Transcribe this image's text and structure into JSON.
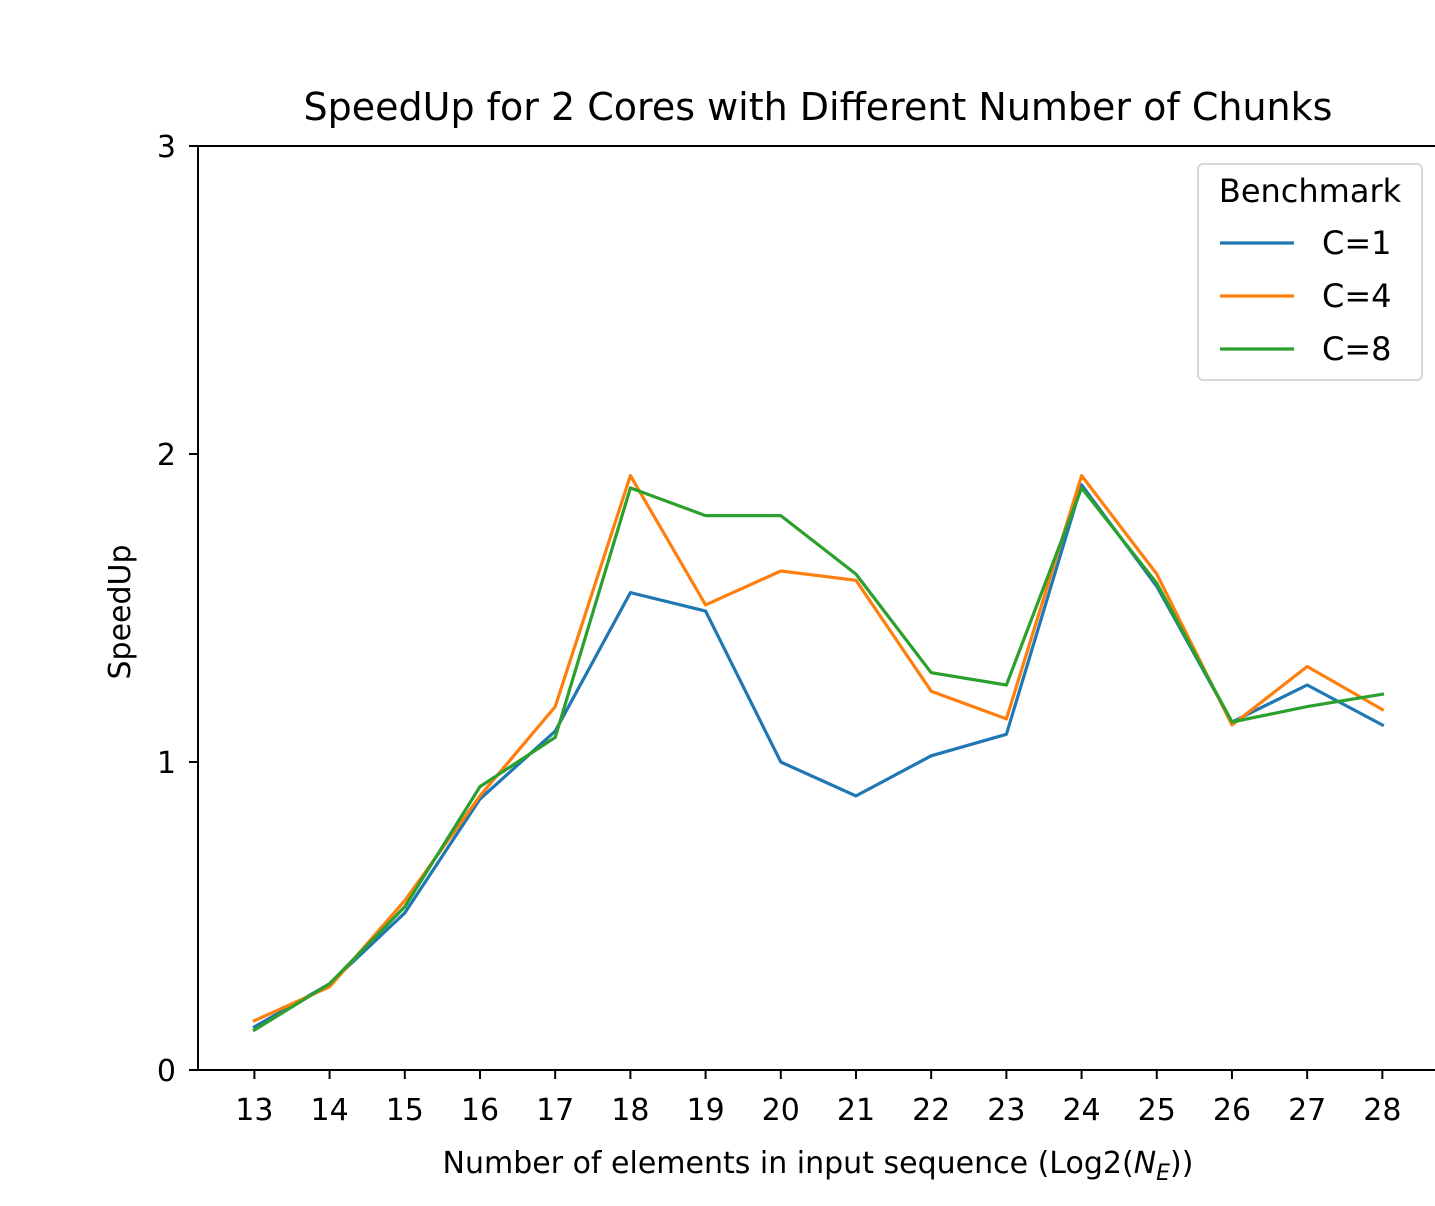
{
  "chart_data": {
    "type": "line",
    "title": "SpeedUp for 2 Cores with Different Number of Chunks",
    "xlabel_prefix": "Number of elements in input sequence (Log2(",
    "xlabel_var": "N",
    "xlabel_sub": "E",
    "xlabel_suffix": "))",
    "ylabel": "SpeedUp",
    "x": [
      13,
      14,
      15,
      16,
      17,
      18,
      19,
      20,
      21,
      22,
      23,
      24,
      25,
      26,
      27,
      28
    ],
    "xtick_labels": [
      "13",
      "14",
      "15",
      "16",
      "17",
      "18",
      "19",
      "20",
      "21",
      "22",
      "23",
      "24",
      "25",
      "26",
      "27",
      "28"
    ],
    "xlim": [
      12.25,
      28.7
    ],
    "ylim": [
      0,
      3
    ],
    "yticks": [
      0,
      1,
      2,
      3
    ],
    "ytick_labels": [
      "0",
      "1",
      "2",
      "3"
    ],
    "grid": false,
    "legend": {
      "title": "Benchmark",
      "position": "top-right"
    },
    "series": [
      {
        "name": "C=1",
        "color": "#1f77b4",
        "values": [
          0.14,
          0.28,
          0.51,
          0.88,
          1.1,
          1.55,
          1.49,
          1.0,
          0.89,
          1.02,
          1.09,
          1.9,
          1.57,
          1.13,
          1.25,
          1.12
        ]
      },
      {
        "name": "C=4",
        "color": "#ff7f0e",
        "values": [
          0.16,
          0.27,
          0.55,
          0.89,
          1.18,
          1.93,
          1.51,
          1.62,
          1.59,
          1.23,
          1.14,
          1.93,
          1.61,
          1.12,
          1.31,
          1.17
        ]
      },
      {
        "name": "C=8",
        "color": "#2ca02c",
        "values": [
          0.13,
          0.28,
          0.53,
          0.92,
          1.08,
          1.89,
          1.8,
          1.8,
          1.61,
          1.29,
          1.25,
          1.89,
          1.58,
          1.13,
          1.18,
          1.22
        ]
      }
    ]
  }
}
